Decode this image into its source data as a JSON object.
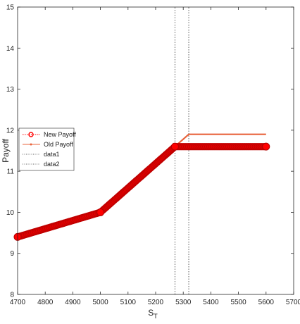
{
  "chart_data": {
    "type": "line",
    "xlabel": "S",
    "xlabel_sub": "T",
    "ylabel": "Payoff",
    "xlim": [
      4700,
      5700
    ],
    "ylim": [
      8,
      15
    ],
    "xticks": [
      4700,
      4800,
      4900,
      5000,
      5100,
      5200,
      5300,
      5400,
      5500,
      5600,
      5700
    ],
    "yticks": [
      8,
      9,
      10,
      11,
      12,
      13,
      14,
      15
    ],
    "grid": false,
    "legend_position": "left",
    "series": [
      {
        "name": "New Payoff",
        "color": "#ff0000",
        "style": "dotted-circles",
        "x": [
          4700,
          5000,
          5270,
          5600
        ],
        "y": [
          9.4,
          10.0,
          11.6,
          11.6
        ]
      },
      {
        "name": "Old Payoff",
        "color": "#e8643c",
        "style": "solid-dots",
        "x": [
          4700,
          5000,
          5320,
          5600
        ],
        "y": [
          9.4,
          10.0,
          11.9,
          11.9
        ]
      },
      {
        "name": "data1",
        "color": "#333333",
        "style": "dotted-vertical",
        "x": [
          5270,
          5270
        ],
        "y": [
          8,
          15
        ]
      },
      {
        "name": "data2",
        "color": "#333333",
        "style": "dotted-vertical",
        "x": [
          5320,
          5320
        ],
        "y": [
          8,
          15
        ]
      }
    ]
  }
}
